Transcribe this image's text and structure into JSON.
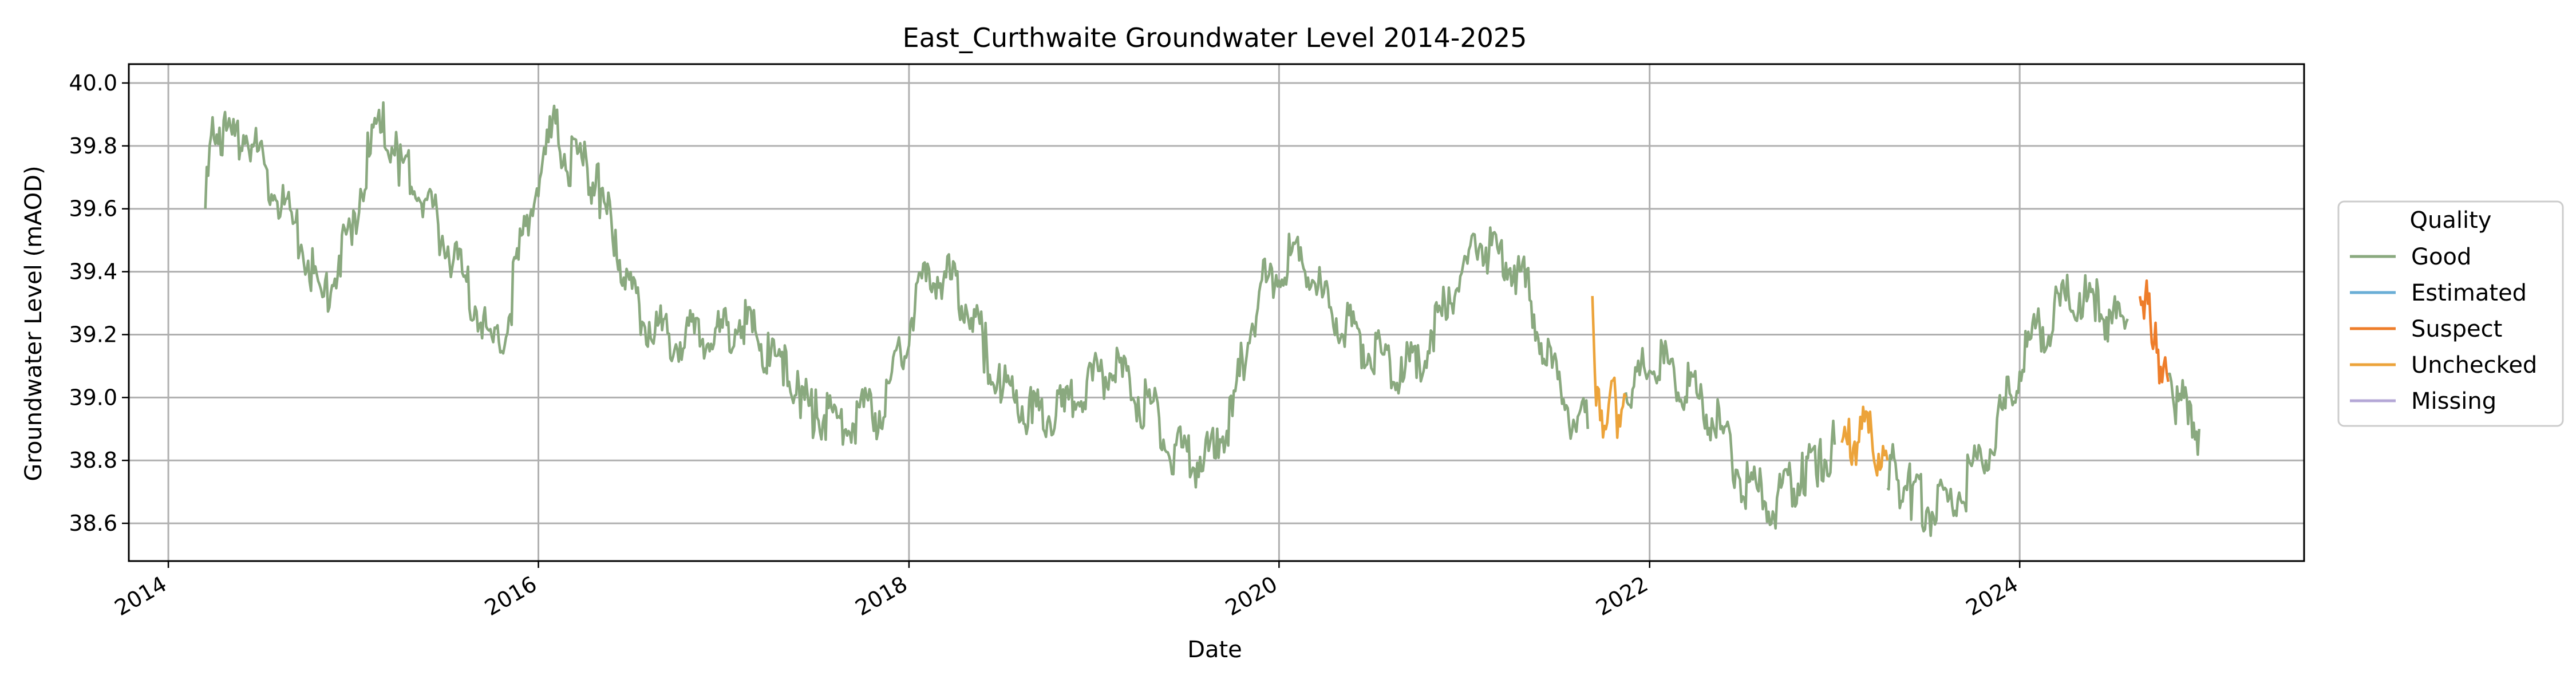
{
  "chart_data": {
    "type": "line",
    "title": "East_Curthwaite Groundwater Level 2014-2025",
    "xlabel": "Date",
    "ylabel": "Groundwater Level (mAOD)",
    "xlim": [
      "2013-10-15",
      "2025-07-15"
    ],
    "ylim": [
      38.48,
      40.06
    ],
    "x_ticks": [
      "2014",
      "2016",
      "2018",
      "2020",
      "2022",
      "2024"
    ],
    "y_ticks": [
      "38.6",
      "38.8",
      "39.0",
      "39.2",
      "39.4",
      "39.6",
      "39.8",
      "40.0"
    ],
    "grid": true,
    "legend": {
      "title": "Quality",
      "placement": "outside-right"
    },
    "series": [
      {
        "name": "Good",
        "color": "#8aa97f",
        "segments": [
          [
            [
              "2014-03-15",
              39.6
            ],
            [
              "2014-04-01",
              39.9
            ],
            [
              "2014-05-01",
              39.8
            ],
            [
              "2014-06-01",
              39.85
            ],
            [
              "2014-07-01",
              39.75
            ],
            [
              "2014-08-01",
              39.65
            ],
            [
              "2014-09-01",
              39.55
            ],
            [
              "2014-10-01",
              39.45
            ],
            [
              "2014-11-01",
              39.3
            ],
            [
              "2014-12-01",
              39.45
            ],
            [
              "2015-01-01",
              39.55
            ],
            [
              "2015-02-01",
              39.8
            ],
            [
              "2015-03-01",
              39.85
            ],
            [
              "2015-04-01",
              39.75
            ],
            [
              "2015-05-01",
              39.7
            ],
            [
              "2015-06-01",
              39.6
            ],
            [
              "2015-07-01",
              39.5
            ],
            [
              "2015-08-01",
              39.4
            ],
            [
              "2015-09-01",
              39.3
            ],
            [
              "2015-10-01",
              39.15
            ],
            [
              "2015-11-01",
              39.25
            ],
            [
              "2015-12-01",
              39.5
            ],
            [
              "2016-01-01",
              39.7
            ],
            [
              "2016-02-01",
              39.85
            ],
            [
              "2016-03-01",
              39.75
            ],
            [
              "2016-04-01",
              39.75
            ],
            [
              "2016-05-01",
              39.65
            ],
            [
              "2016-06-01",
              39.5
            ],
            [
              "2016-07-01",
              39.35
            ],
            [
              "2016-08-01",
              39.25
            ],
            [
              "2016-09-01",
              39.2
            ],
            [
              "2016-10-01",
              39.2
            ],
            [
              "2016-11-01",
              39.2
            ],
            [
              "2016-12-01",
              39.2
            ],
            [
              "2017-01-01",
              39.2
            ],
            [
              "2017-02-01",
              39.25
            ],
            [
              "2017-03-01",
              39.2
            ],
            [
              "2017-04-01",
              39.15
            ],
            [
              "2017-05-01",
              39.1
            ],
            [
              "2017-06-01",
              39.0
            ],
            [
              "2017-07-01",
              38.95
            ],
            [
              "2017-08-01",
              38.95
            ],
            [
              "2017-09-01",
              38.9
            ],
            [
              "2017-10-01",
              38.95
            ],
            [
              "2017-11-01",
              38.95
            ],
            [
              "2017-12-01",
              39.05
            ],
            [
              "2018-01-01",
              39.25
            ],
            [
              "2018-02-01",
              39.35
            ],
            [
              "2018-03-01",
              39.4
            ],
            [
              "2018-04-01",
              39.35
            ],
            [
              "2018-05-01",
              39.3
            ],
            [
              "2018-06-01",
              39.15
            ],
            [
              "2018-07-01",
              39.05
            ],
            [
              "2018-08-01",
              39.0
            ],
            [
              "2018-09-01",
              38.95
            ],
            [
              "2018-10-01",
              38.95
            ],
            [
              "2018-11-01",
              38.95
            ],
            [
              "2018-12-01",
              39.0
            ],
            [
              "2019-01-01",
              39.05
            ],
            [
              "2019-02-01",
              39.1
            ],
            [
              "2019-03-01",
              39.05
            ],
            [
              "2019-04-01",
              39.0
            ],
            [
              "2019-05-01",
              38.95
            ],
            [
              "2019-06-01",
              38.85
            ],
            [
              "2019-07-01",
              38.8
            ],
            [
              "2019-08-01",
              38.8
            ],
            [
              "2019-09-01",
              38.85
            ],
            [
              "2019-10-01",
              38.95
            ],
            [
              "2019-11-01",
              39.2
            ],
            [
              "2019-12-01",
              39.35
            ],
            [
              "2020-01-01",
              39.4
            ],
            [
              "2020-02-01",
              39.45
            ],
            [
              "2020-03-01",
              39.4
            ],
            [
              "2020-04-01",
              39.3
            ],
            [
              "2020-05-01",
              39.25
            ],
            [
              "2020-06-01",
              39.2
            ],
            [
              "2020-07-01",
              39.15
            ],
            [
              "2020-08-01",
              39.1
            ],
            [
              "2020-09-01",
              39.1
            ],
            [
              "2020-10-01",
              39.1
            ],
            [
              "2020-11-01",
              39.2
            ],
            [
              "2020-12-01",
              39.3
            ],
            [
              "2021-01-01",
              39.4
            ],
            [
              "2021-02-01",
              39.5
            ],
            [
              "2021-03-01",
              39.45
            ],
            [
              "2021-04-01",
              39.45
            ],
            [
              "2021-05-01",
              39.35
            ],
            [
              "2021-06-01",
              39.2
            ],
            [
              "2021-07-01",
              39.05
            ],
            [
              "2021-08-01",
              38.95
            ],
            [
              "2021-09-01",
              38.9
            ]
          ],
          [
            [
              "2021-11-15",
              39.0
            ],
            [
              "2021-12-01",
              39.05
            ],
            [
              "2022-01-01",
              39.1
            ],
            [
              "2022-02-01",
              39.1
            ],
            [
              "2022-03-01",
              39.05
            ],
            [
              "2022-04-01",
              39.0
            ],
            [
              "2022-05-01",
              38.95
            ],
            [
              "2022-06-01",
              38.85
            ],
            [
              "2022-07-01",
              38.75
            ],
            [
              "2022-08-01",
              38.7
            ],
            [
              "2022-09-01",
              38.65
            ],
            [
              "2022-10-01",
              38.7
            ],
            [
              "2022-11-01",
              38.75
            ],
            [
              "2022-12-01",
              38.8
            ],
            [
              "2023-01-01",
              38.85
            ]
          ],
          [
            [
              "2023-04-15",
              38.8
            ],
            [
              "2023-05-01",
              38.75
            ],
            [
              "2023-06-01",
              38.7
            ],
            [
              "2023-07-01",
              38.65
            ],
            [
              "2023-08-01",
              38.65
            ],
            [
              "2023-09-01",
              38.7
            ],
            [
              "2023-10-01",
              38.75
            ],
            [
              "2023-11-01",
              38.85
            ],
            [
              "2023-12-01",
              38.95
            ],
            [
              "2024-01-01",
              39.1
            ],
            [
              "2024-02-01",
              39.2
            ],
            [
              "2024-03-01",
              39.25
            ],
            [
              "2024-04-01",
              39.3
            ],
            [
              "2024-05-01",
              39.3
            ],
            [
              "2024-06-01",
              39.3
            ],
            [
              "2024-07-01",
              39.25
            ],
            [
              "2024-08-01",
              39.25
            ]
          ],
          [
            [
              "2024-10-20",
              39.05
            ],
            [
              "2024-11-01",
              39.0
            ],
            [
              "2024-12-01",
              38.95
            ],
            [
              "2024-12-20",
              38.9
            ]
          ]
        ]
      },
      {
        "name": "Estimated",
        "color": "#6aaed6",
        "segments": []
      },
      {
        "name": "Suspect",
        "color": "#ee7d2a",
        "segments": [
          [
            [
              "2024-08-25",
              39.38
            ],
            [
              "2024-09-05",
              39.3
            ],
            [
              "2024-09-15",
              39.25
            ],
            [
              "2024-09-25",
              39.15
            ],
            [
              "2024-10-05",
              39.1
            ],
            [
              "2024-10-20",
              39.05
            ]
          ]
        ]
      },
      {
        "name": "Unchecked",
        "color": "#eca33a",
        "segments": [
          [
            [
              "2021-09-10",
              39.34
            ],
            [
              "2021-09-20",
              38.95
            ],
            [
              "2021-10-01",
              38.9
            ],
            [
              "2021-10-15",
              39.0
            ],
            [
              "2021-11-01",
              38.95
            ],
            [
              "2021-11-15",
              39.0
            ]
          ],
          [
            [
              "2023-01-15",
              38.8
            ],
            [
              "2023-02-01",
              38.85
            ],
            [
              "2023-03-01",
              38.9
            ],
            [
              "2023-03-20",
              38.85
            ],
            [
              "2023-04-15",
              38.8
            ]
          ]
        ]
      },
      {
        "name": "Missing",
        "color": "#b4a7d6",
        "segments": []
      }
    ]
  }
}
